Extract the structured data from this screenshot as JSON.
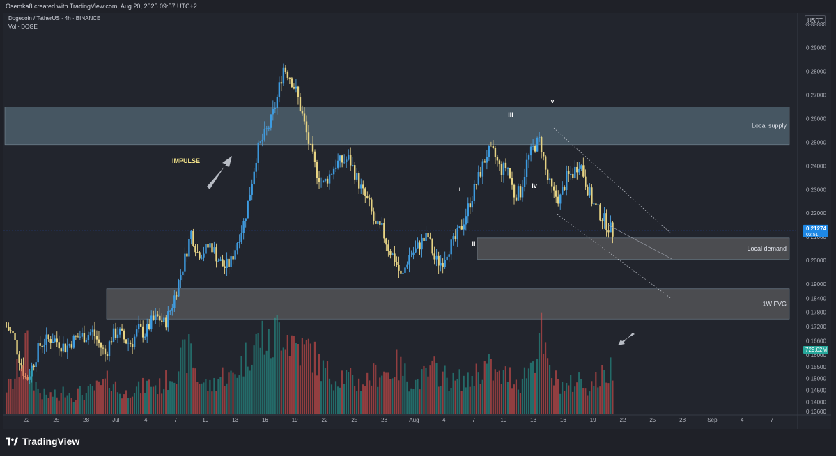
{
  "header": {
    "attribution": "Osemka8 created with TradingView.com, Aug 20, 2025 09:57 UTC+2"
  },
  "legend": {
    "symbol": "Dogecoin / TetherUS · 4h · BINANCE",
    "volume": "Vol · DOGE"
  },
  "currency": "USDT",
  "footer": {
    "brand": "TradingView"
  },
  "colors": {
    "up": "#26a69a",
    "down": "#ef5350",
    "wick_up": "#4fa3e0",
    "wick_down": "#e8d48a",
    "price_line": "#2962ff",
    "price_label_bg": "#1e88e5",
    "volume_label_bg": "#26a69a",
    "supply_zone": "#5f7886",
    "demand_zone": "#6d6d6d",
    "fvg_zone": "#6d6d6d",
    "impulse_text": "#f5e58a"
  },
  "chart_data": {
    "type": "candlestick",
    "y_axis": {
      "ticks": [
        "0.30000",
        "0.29000",
        "0.28000",
        "0.27000",
        "0.26000",
        "0.25000",
        "0.24000",
        "0.23000",
        "0.22000",
        "0.21000",
        "0.20000",
        "0.19000",
        "0.18400",
        "0.17800",
        "0.17200",
        "0.16600",
        "0.16000",
        "0.15500",
        "0.15000",
        "0.14500",
        "0.14000",
        "0.13600"
      ],
      "ylim": [
        0.134,
        0.302
      ]
    },
    "x_axis": {
      "ticks": [
        "22",
        "25",
        "28",
        "Jul",
        "4",
        "7",
        "10",
        "13",
        "16",
        "19",
        "22",
        "25",
        "28",
        "Aug",
        "4",
        "7",
        "10",
        "13",
        "16",
        "19",
        "22",
        "25",
        "28",
        "Sep",
        "4",
        "7"
      ]
    },
    "last_price": {
      "value": "0.21274",
      "countdown": "02:51",
      "price": 0.21274
    },
    "last_volume": {
      "value": "729.02M"
    },
    "price_path": [
      0.172,
      0.168,
      0.158,
      0.149,
      0.156,
      0.164,
      0.166,
      0.167,
      0.165,
      0.163,
      0.166,
      0.168,
      0.168,
      0.17,
      0.165,
      0.16,
      0.168,
      0.17,
      0.166,
      0.165,
      0.171,
      0.169,
      0.174,
      0.176,
      0.173,
      0.18,
      0.19,
      0.2,
      0.212,
      0.203,
      0.204,
      0.207,
      0.201,
      0.197,
      0.199,
      0.208,
      0.216,
      0.23,
      0.246,
      0.252,
      0.258,
      0.268,
      0.282,
      0.278,
      0.271,
      0.26,
      0.248,
      0.238,
      0.232,
      0.236,
      0.241,
      0.242,
      0.243,
      0.236,
      0.229,
      0.224,
      0.214,
      0.213,
      0.205,
      0.2,
      0.192,
      0.202,
      0.204,
      0.208,
      0.21,
      0.2,
      0.199,
      0.205,
      0.208,
      0.214,
      0.222,
      0.23,
      0.238,
      0.246,
      0.245,
      0.238,
      0.24,
      0.228,
      0.229,
      0.242,
      0.248,
      0.251,
      0.235,
      0.228,
      0.226,
      0.235,
      0.237,
      0.242,
      0.232,
      0.224,
      0.22,
      0.216,
      0.212
    ],
    "volume_profile": [
      0.3,
      0.35,
      0.55,
      0.8,
      0.4,
      0.25,
      0.2,
      0.22,
      0.18,
      0.3,
      0.2,
      0.25,
      0.22,
      0.28,
      0.3,
      0.35,
      0.4,
      0.25,
      0.22,
      0.3,
      0.28,
      0.32,
      0.35,
      0.3,
      0.35,
      0.45,
      0.55,
      0.65,
      0.7,
      0.4,
      0.35,
      0.3,
      0.4,
      0.45,
      0.4,
      0.5,
      0.6,
      0.75,
      0.8,
      0.9,
      0.7,
      0.95,
      1.0,
      0.85,
      0.8,
      0.7,
      0.75,
      0.6,
      0.5,
      0.45,
      0.4,
      0.45,
      0.4,
      0.35,
      0.35,
      0.4,
      0.45,
      0.5,
      0.45,
      0.55,
      0.5,
      0.4,
      0.35,
      0.4,
      0.45,
      0.5,
      0.45,
      0.4,
      0.35,
      0.4,
      0.35,
      0.45,
      0.5,
      0.55,
      0.45,
      0.4,
      0.45,
      0.4,
      0.35,
      0.5,
      0.6,
      0.95,
      0.55,
      0.4,
      0.35,
      0.3,
      0.35,
      0.4,
      0.3,
      0.35,
      0.4,
      0.45,
      0.55
    ],
    "zones": [
      {
        "label": "Local supply",
        "from": 0.249,
        "to": 0.265
      },
      {
        "label": "Local demand",
        "from": 0.2005,
        "to": 0.2095
      },
      {
        "label": "1W FVG",
        "from": 0.1752,
        "to": 0.188
      }
    ],
    "annotations": [
      {
        "text": "IMPULSE",
        "kind": "label"
      },
      {
        "text": "i"
      },
      {
        "text": "ii"
      },
      {
        "text": "iii"
      },
      {
        "text": "iv"
      },
      {
        "text": "v"
      }
    ]
  }
}
